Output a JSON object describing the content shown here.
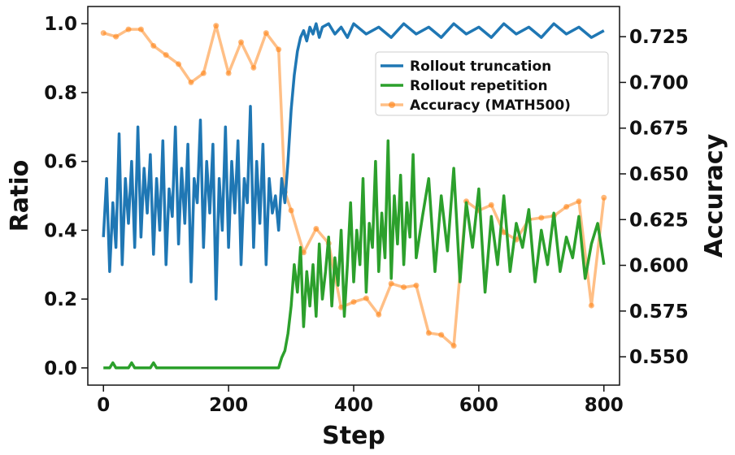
{
  "chart_data": {
    "type": "line",
    "xlabel": "Step",
    "ylabel": "Ratio",
    "y2label": "Accuracy",
    "xlim": [
      -25,
      825
    ],
    "ylim": [
      -0.05,
      1.05
    ],
    "y2lim": [
      0.5345,
      0.7415
    ],
    "xticks": [
      "0",
      "200",
      "400",
      "600",
      "800"
    ],
    "yticks": [
      "0.0",
      "0.2",
      "0.4",
      "0.6",
      "0.8",
      "1.0"
    ],
    "y2ticks": [
      "0.550",
      "0.575",
      "0.600",
      "0.625",
      "0.650",
      "0.675",
      "0.700",
      "0.725"
    ],
    "grid": false,
    "legend_position": "upper-right",
    "colors": {
      "truncation": "#1f77b4",
      "repetition": "#2ca02c",
      "accuracy": "#ff7f0e"
    },
    "series": [
      {
        "name": "Rollout truncation",
        "axis": "left",
        "x": [
          0,
          5,
          10,
          15,
          20,
          25,
          30,
          35,
          40,
          45,
          50,
          55,
          60,
          65,
          70,
          75,
          80,
          85,
          90,
          95,
          100,
          105,
          110,
          115,
          120,
          125,
          130,
          135,
          140,
          145,
          150,
          155,
          160,
          165,
          170,
          175,
          180,
          185,
          190,
          195,
          200,
          205,
          210,
          215,
          220,
          225,
          230,
          235,
          240,
          245,
          250,
          255,
          260,
          265,
          270,
          275,
          280,
          285,
          290,
          295,
          300,
          305,
          310,
          315,
          320,
          325,
          330,
          335,
          340,
          345,
          350,
          360,
          370,
          380,
          390,
          400,
          420,
          440,
          460,
          480,
          500,
          520,
          540,
          560,
          580,
          600,
          620,
          640,
          660,
          680,
          700,
          720,
          740,
          760,
          780,
          800
        ],
        "values": [
          0.38,
          0.55,
          0.28,
          0.48,
          0.35,
          0.68,
          0.3,
          0.55,
          0.42,
          0.6,
          0.35,
          0.7,
          0.38,
          0.58,
          0.45,
          0.62,
          0.33,
          0.55,
          0.4,
          0.66,
          0.3,
          0.52,
          0.44,
          0.7,
          0.36,
          0.58,
          0.42,
          0.65,
          0.25,
          0.55,
          0.48,
          0.72,
          0.35,
          0.6,
          0.45,
          0.65,
          0.2,
          0.55,
          0.4,
          0.7,
          0.35,
          0.6,
          0.45,
          0.66,
          0.3,
          0.55,
          0.48,
          0.76,
          0.35,
          0.6,
          0.42,
          0.65,
          0.3,
          0.55,
          0.45,
          0.5,
          0.4,
          0.55,
          0.48,
          0.6,
          0.75,
          0.85,
          0.92,
          0.96,
          0.98,
          0.95,
          0.99,
          0.97,
          1.0,
          0.96,
          0.99,
          1.0,
          0.97,
          0.99,
          0.96,
          1.0,
          0.97,
          0.99,
          0.96,
          1.0,
          0.97,
          0.99,
          0.96,
          1.0,
          0.97,
          0.99,
          0.96,
          1.0,
          0.97,
          0.99,
          0.96,
          1.0,
          0.97,
          0.99,
          0.96,
          0.98
        ]
      },
      {
        "name": "Rollout repetition",
        "axis": "left",
        "x": [
          0,
          10,
          15,
          20,
          40,
          45,
          50,
          75,
          80,
          85,
          100,
          150,
          200,
          250,
          280,
          285,
          290,
          295,
          300,
          305,
          310,
          315,
          320,
          325,
          330,
          335,
          340,
          345,
          350,
          355,
          360,
          365,
          370,
          375,
          380,
          385,
          390,
          395,
          400,
          405,
          410,
          415,
          420,
          425,
          430,
          435,
          440,
          445,
          450,
          455,
          460,
          465,
          470,
          475,
          480,
          485,
          490,
          495,
          500,
          510,
          520,
          530,
          540,
          550,
          560,
          570,
          580,
          590,
          600,
          610,
          620,
          630,
          640,
          650,
          660,
          670,
          680,
          690,
          700,
          710,
          720,
          730,
          740,
          750,
          760,
          770,
          780,
          790,
          800
        ],
        "values": [
          0.0,
          0.0,
          0.015,
          0.0,
          0.0,
          0.015,
          0.0,
          0.0,
          0.015,
          0.0,
          0.0,
          0.0,
          0.0,
          0.0,
          0.0,
          0.03,
          0.05,
          0.1,
          0.18,
          0.3,
          0.22,
          0.35,
          0.12,
          0.28,
          0.18,
          0.3,
          0.15,
          0.36,
          0.2,
          0.28,
          0.38,
          0.18,
          0.32,
          0.24,
          0.4,
          0.15,
          0.3,
          0.48,
          0.25,
          0.4,
          0.3,
          0.55,
          0.22,
          0.42,
          0.35,
          0.6,
          0.28,
          0.45,
          0.32,
          0.66,
          0.26,
          0.5,
          0.36,
          0.56,
          0.3,
          0.48,
          0.38,
          0.62,
          0.32,
          0.44,
          0.55,
          0.28,
          0.5,
          0.34,
          0.58,
          0.25,
          0.48,
          0.35,
          0.52,
          0.22,
          0.44,
          0.3,
          0.5,
          0.28,
          0.42,
          0.35,
          0.46,
          0.25,
          0.4,
          0.3,
          0.45,
          0.28,
          0.38,
          0.32,
          0.44,
          0.26,
          0.36,
          0.42,
          0.3
        ]
      },
      {
        "name": "Accuracy (MATH500)",
        "axis": "right",
        "x": [
          0,
          20,
          40,
          60,
          80,
          100,
          120,
          140,
          160,
          180,
          200,
          220,
          240,
          260,
          280,
          290,
          300,
          320,
          340,
          360,
          380,
          400,
          420,
          440,
          460,
          480,
          500,
          520,
          540,
          560,
          580,
          600,
          620,
          640,
          660,
          680,
          700,
          720,
          740,
          760,
          780,
          800
        ],
        "values": [
          0.727,
          0.725,
          0.729,
          0.729,
          0.72,
          0.715,
          0.71,
          0.7,
          0.705,
          0.731,
          0.705,
          0.722,
          0.708,
          0.727,
          0.718,
          0.64,
          0.63,
          0.607,
          0.62,
          0.612,
          0.577,
          0.58,
          0.582,
          0.573,
          0.59,
          0.588,
          0.589,
          0.563,
          0.562,
          0.556,
          0.635,
          0.63,
          0.633,
          0.618,
          0.614,
          0.625,
          0.626,
          0.627,
          0.632,
          0.635,
          0.578,
          0.637
        ]
      }
    ]
  }
}
